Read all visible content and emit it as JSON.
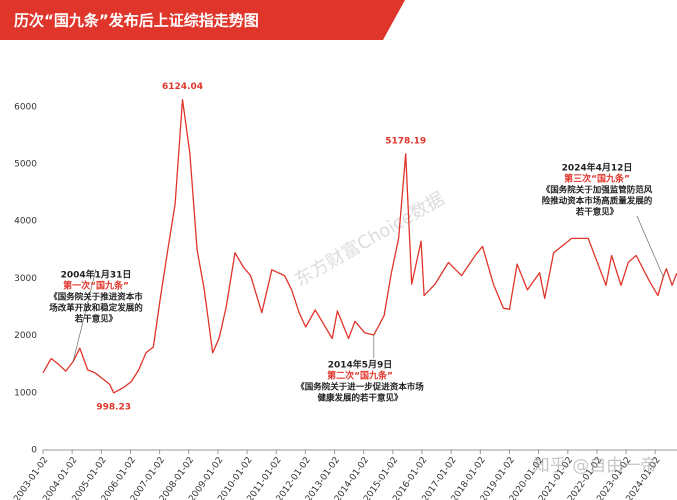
{
  "chart_data": {
    "type": "line",
    "title": "历次“国九条”发布后上证综指走势图",
    "x": [
      "2003-01-02",
      "2003-04-15",
      "2003-07-15",
      "2003-10-15",
      "2004-01-15",
      "2004-04-07",
      "2004-07-15",
      "2004-10-15",
      "2005-01-15",
      "2005-04-15",
      "2005-06-06",
      "2005-10-15",
      "2006-01-15",
      "2006-04-15",
      "2006-07-15",
      "2006-10-15",
      "2007-01-15",
      "2007-04-15",
      "2007-07-15",
      "2007-10-16",
      "2008-01-15",
      "2008-04-15",
      "2008-07-15",
      "2008-10-28",
      "2009-01-15",
      "2009-04-15",
      "2009-08-04",
      "2009-11-15",
      "2010-02-15",
      "2010-07-05",
      "2010-11-08",
      "2011-04-15",
      "2011-07-15",
      "2011-10-15",
      "2012-01-06",
      "2012-05-04",
      "2012-12-03",
      "2013-02-06",
      "2013-06-25",
      "2013-09-15",
      "2014-01-15",
      "2014-05-09",
      "2014-09-15",
      "2014-12-15",
      "2015-03-15",
      "2015-06-12",
      "2015-08-26",
      "2015-12-22",
      "2016-01-28",
      "2016-06-15",
      "2016-11-29",
      "2017-05-11",
      "2017-11-14",
      "2018-01-29",
      "2018-06-15",
      "2018-10-18",
      "2019-01-03",
      "2019-04-08",
      "2019-08-15",
      "2020-01-15",
      "2020-03-19",
      "2020-07-09",
      "2021-02-18",
      "2021-09-15",
      "2022-04-26",
      "2022-07-05",
      "2022-10-31",
      "2023-01-30",
      "2023-05-09",
      "2023-10-23",
      "2024-02-05",
      "2024-04-12",
      "2024-05-20",
      "2024-07-31",
      "2024-09-27"
    ],
    "values": [
      1350,
      1600,
      1500,
      1380,
      1550,
      1780,
      1400,
      1350,
      1250,
      1150,
      998.23,
      1100,
      1200,
      1400,
      1700,
      1800,
      2700,
      3500,
      4300,
      6124.04,
      5200,
      3500,
      2800,
      1700,
      1950,
      2500,
      3450,
      3200,
      3050,
      2400,
      3150,
      3050,
      2800,
      2400,
      2150,
      2450,
      1950,
      2430,
      1950,
      2250,
      2050,
      2010,
      2350,
      3100,
      3700,
      5178.19,
      2900,
      3650,
      2700,
      2900,
      3280,
      3050,
      3430,
      3560,
      2900,
      2480,
      2460,
      3250,
      2800,
      3100,
      2650,
      3450,
      3700,
      3700,
      2880,
      3400,
      2880,
      3280,
      3400,
      2950,
      2700,
      3030,
      3170,
      2880,
      3090
    ],
    "color": "#e0352b",
    "xlim": [
      "2003-01-02",
      "2024-10-01"
    ],
    "xticks": [
      "2003-01-02",
      "2004-01-02",
      "2005-01-02",
      "2006-01-02",
      "2007-01-02",
      "2008-01-02",
      "2009-01-02",
      "2010-01-02",
      "2011-01-02",
      "2012-01-02",
      "2013-01-02",
      "2014-01-02",
      "2015-01-02",
      "2016-01-02",
      "2017-01-02",
      "2018-01-02",
      "2019-01-02",
      "2020-01-02",
      "2021-01-02",
      "2022-01-02",
      "2023-01-02",
      "2024-01-02"
    ],
    "ylim": [
      0,
      6200
    ],
    "yticks": [
      0,
      1000,
      2000,
      3000,
      4000,
      5000,
      6000
    ],
    "annotations": [
      {
        "date": "2004年1月31日",
        "event": "第一次“国九条”",
        "lines": [
          "《国务院关于推进资本市",
          "场改革开放和稳定发展的",
          "若干意见》"
        ]
      },
      {
        "date": "2014年5月9日",
        "event": "第二次“国九条”",
        "lines": [
          "《国务院关于进一步促进资本市场",
          "健康发展的若干意见》"
        ]
      },
      {
        "date": "2024年4月12日",
        "event": "第三次“国九条”",
        "lines": [
          "《国务院关于加强监管防范风",
          "险推动资本市场高质量发展的",
          "若干意见》"
        ]
      }
    ],
    "watermarks": [
      "东方财富Choice数据",
      "知乎 @自由一帝"
    ]
  }
}
